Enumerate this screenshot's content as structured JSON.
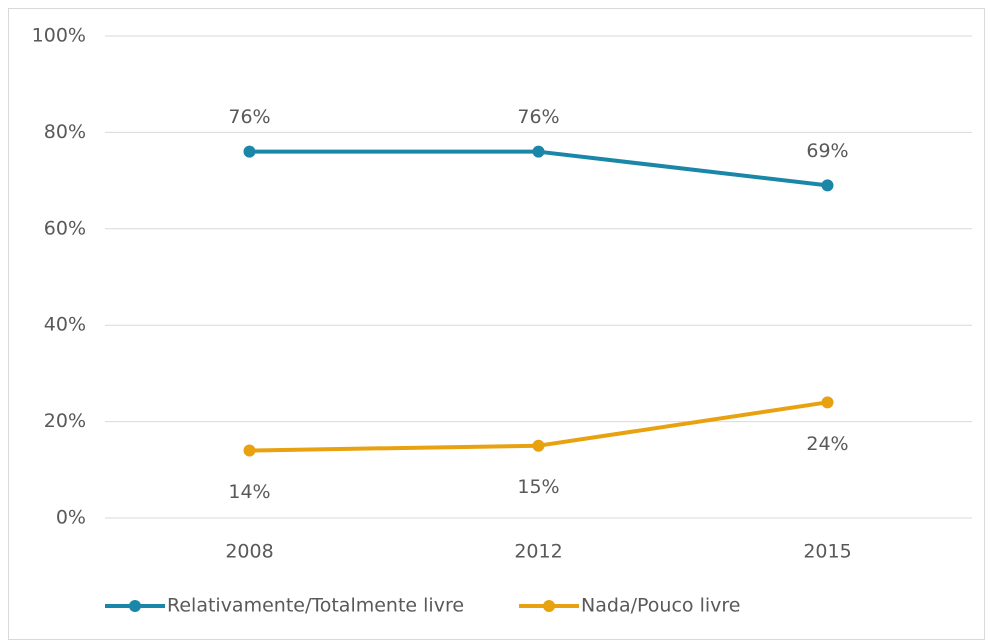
{
  "chart_data": {
    "type": "line",
    "categories": [
      "2008",
      "2012",
      "2015"
    ],
    "series": [
      {
        "name": "Relativamente/Totalmente livre",
        "color": "#1a87a8",
        "values": [
          76,
          76,
          69
        ],
        "value_labels": [
          "76%",
          "76%",
          "69%"
        ]
      },
      {
        "name": "Nada/Pouco livre",
        "color": "#e8a10f",
        "values": [
          14,
          15,
          24
        ],
        "value_labels": [
          "14%",
          "15%",
          "24%"
        ]
      }
    ],
    "ylim": [
      0,
      100
    ],
    "yticks": [
      {
        "value": 0,
        "label": "0%"
      },
      {
        "value": 20,
        "label": "20%"
      },
      {
        "value": 40,
        "label": "40%"
      },
      {
        "value": 60,
        "label": "60%"
      },
      {
        "value": 80,
        "label": "80%"
      },
      {
        "value": 100,
        "label": "100%"
      }
    ],
    "grid": true,
    "legend": "bottom"
  }
}
